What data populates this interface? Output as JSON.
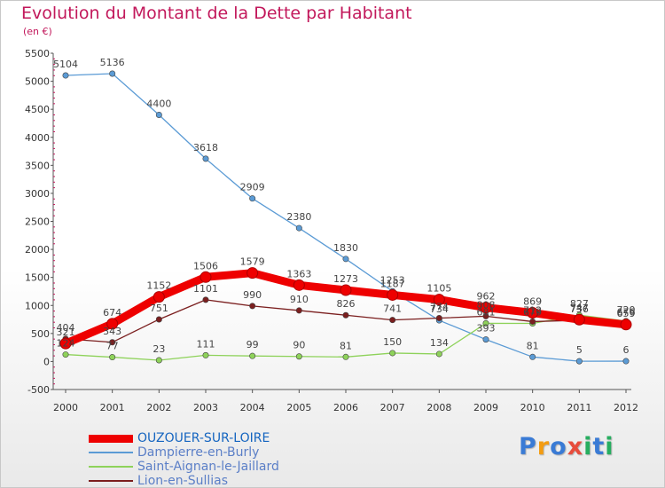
{
  "title": "Evolution du Montant de la Dette par Habitant",
  "subtitle": "(en €)",
  "logo": {
    "text": "Proxiti",
    "letters": [
      "P",
      "r",
      "o",
      "x",
      "i",
      "t",
      "i"
    ],
    "colors": [
      "#3a7bd5",
      "#f39c12",
      "#3a7bd5",
      "#e74c3c",
      "#27ae60",
      "#3a7bd5",
      "#27ae60"
    ]
  },
  "chart_data": {
    "type": "line",
    "title": "Evolution du Montant de la Dette par Habitant",
    "ylabel": "(en €)",
    "xlabel": "",
    "x": [
      "2000",
      "2001",
      "2002",
      "2003",
      "2004",
      "2005",
      "2006",
      "2007",
      "2008",
      "2009",
      "2010",
      "2011",
      "2012"
    ],
    "ylim": [
      -500,
      5500
    ],
    "y_ticks": [
      -500,
      0,
      500,
      1000,
      1500,
      2000,
      2500,
      3000,
      3500,
      4000,
      4500,
      5000,
      5500
    ],
    "grid": false,
    "legend_position": "bottom-left",
    "series": [
      {
        "name": "OUZOUER-SUR-LOIRE",
        "color": "#ee0000",
        "line_width": 9,
        "values": [
          321,
          674,
          1152,
          1506,
          1579,
          1363,
          1273,
          1187,
          1105,
          962,
          869,
          747,
          659
        ],
        "labels": [
          "321",
          "674",
          "1152",
          "1506",
          "1579",
          "1363",
          "1273",
          "1187",
          "1105",
          "962",
          "869",
          "747",
          "659"
        ]
      },
      {
        "name": "Dampierre-en-Burly",
        "color": "#5b9bd5",
        "line_width": 1.3,
        "values": [
          5104,
          5136,
          4400,
          3618,
          2909,
          2380,
          1830,
          1253,
          734,
          393,
          81,
          5,
          6
        ],
        "labels": [
          "5104",
          "5136",
          "4400",
          "3618",
          "2909",
          "2380",
          "1830",
          "1253",
          "734",
          "393",
          "81",
          "5",
          "6"
        ]
      },
      {
        "name": "Saint-Aignan-le-Jaillard",
        "color": "#8ed25a",
        "line_width": 1.3,
        "values": [
          124,
          77,
          23,
          111,
          99,
          90,
          81,
          150,
          134,
          681,
          679,
          827,
          720
        ],
        "labels": [
          "124",
          "77",
          "23",
          "111",
          "99",
          "90",
          "81",
          "150",
          "134",
          "681",
          "679",
          "827",
          "720"
        ]
      },
      {
        "name": "Lion-en-Sullias",
        "color": "#7b1f1f",
        "line_width": 1.3,
        "values": [
          404,
          343,
          751,
          1101,
          990,
          910,
          826,
          741,
          774,
          808,
          712,
          736,
          676
        ],
        "labels": [
          "404",
          "343",
          "751",
          "1101",
          "990",
          "910",
          "826",
          "741",
          "774",
          "808",
          "712",
          "736",
          "676"
        ]
      }
    ]
  }
}
